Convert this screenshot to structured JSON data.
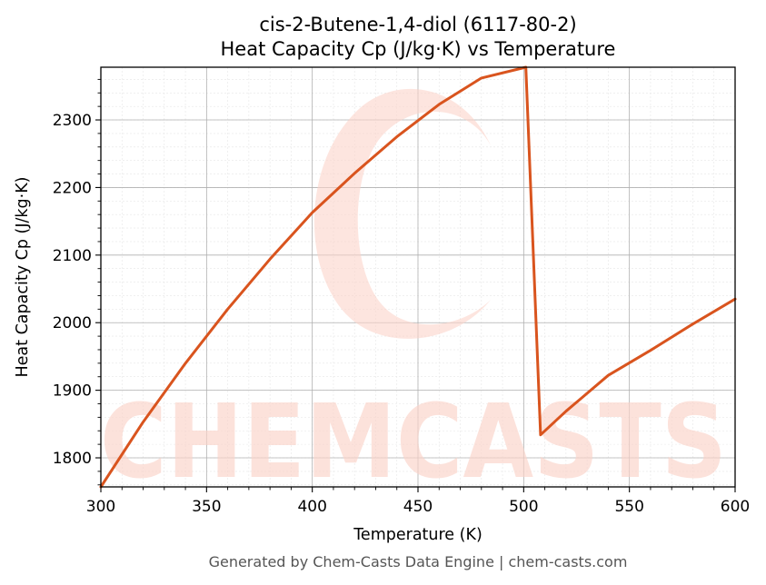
{
  "chart_data": {
    "type": "line",
    "title": "cis-2-Butene-1,4-diol (6117-80-2)",
    "subtitle": "Heat Capacity Cp (J/kg·K) vs Temperature",
    "xlabel": "Temperature (K)",
    "ylabel": "Heat Capacity Cp (J/kg·K)",
    "xlim": [
      300,
      600
    ],
    "ylim": [
      1757,
      2378
    ],
    "xticks": [
      300,
      350,
      400,
      450,
      500,
      550,
      600
    ],
    "yticks": [
      1800,
      1900,
      2000,
      2100,
      2200,
      2300
    ],
    "grid": true,
    "series": [
      {
        "color": "#d9541e",
        "x": [
          300,
          320,
          340,
          360,
          380,
          400,
          420,
          440,
          460,
          480,
          501,
          508,
          520,
          540,
          560,
          580,
          600
        ],
        "y": [
          1757,
          1853,
          1940,
          2020,
          2094,
          2163,
          2221,
          2275,
          2323,
          2362,
          2378,
          1834,
          1869,
          1922,
          1959,
          1998,
          2035
        ]
      }
    ]
  },
  "watermark": {
    "text": "CHEMCASTS",
    "color": "#fbd3c9"
  },
  "footer": "Generated by Chem-Casts Data Engine | chem-casts.com"
}
